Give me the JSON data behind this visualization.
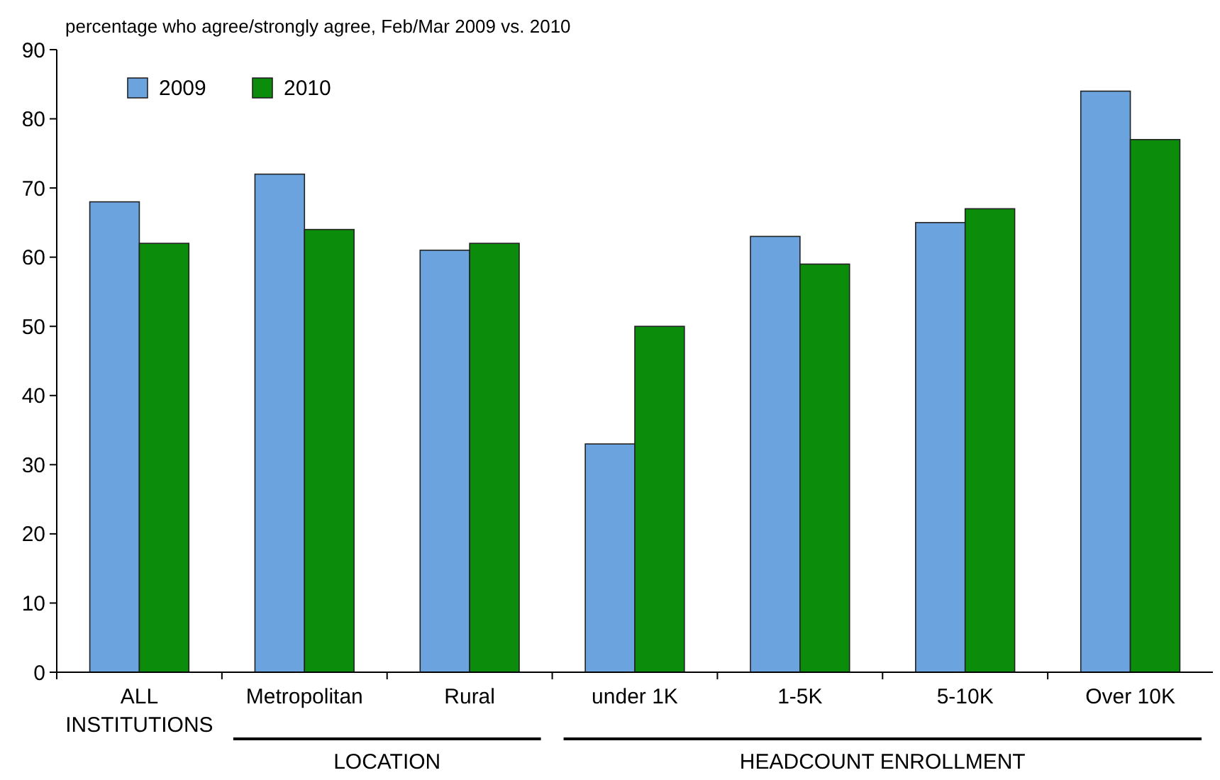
{
  "chart_data": {
    "type": "bar",
    "title": "percentage who agree/strongly agree, Feb/Mar 2009 vs. 2010",
    "categories": [
      "ALL INSTITUTIONS",
      "Metropolitan",
      "Rural",
      "under 1K",
      "1-5K",
      "5-10K",
      "Over 10K"
    ],
    "series": [
      {
        "name": "2009",
        "color": "#6aa3de",
        "values": [
          68,
          72,
          61,
          33,
          63,
          65,
          84
        ]
      },
      {
        "name": "2010",
        "color": "#0b8c0b",
        "values": [
          62,
          64,
          62,
          50,
          59,
          67,
          77
        ]
      }
    ],
    "ylim": [
      0,
      90
    ],
    "yticks": [
      0,
      10,
      20,
      30,
      40,
      50,
      60,
      70,
      80,
      90
    ],
    "grid": false,
    "legend": "top left",
    "annotations": [
      "LOCATION",
      "HEADCOUNT ENROLLMENT"
    ]
  }
}
